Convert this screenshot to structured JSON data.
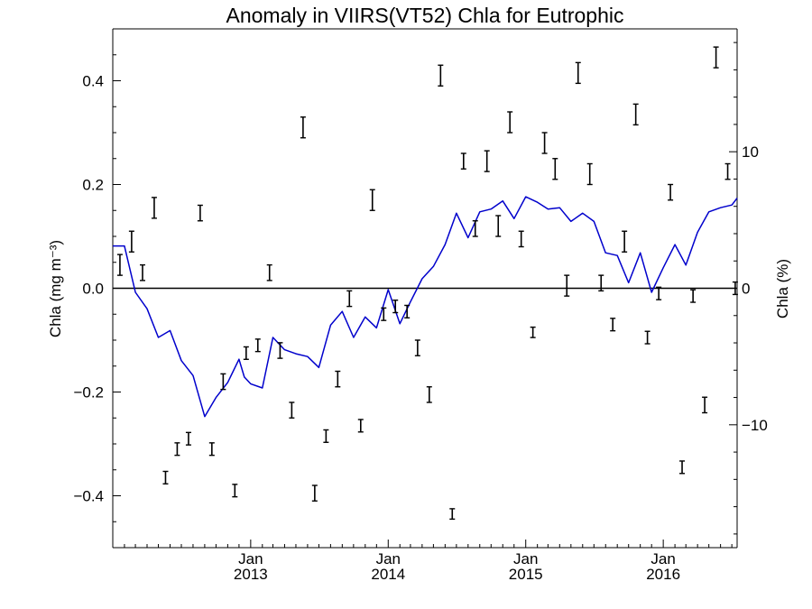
{
  "chart_data": {
    "type": "line",
    "title": "Anomaly in VIIRS(VT52) Chla for Eutrophic",
    "ylabel_left": "Chla (mg m⁻³)",
    "ylabel_right": "Chla (%)",
    "ylim_left": [
      -0.5,
      0.5
    ],
    "ylim_right": [
      -19,
      19
    ],
    "xlim": [
      "2012-01-01",
      "2016-07-15"
    ],
    "y_ticks_left": [
      -0.4,
      -0.2,
      0.0,
      0.2,
      0.4
    ],
    "y_tick_labels_left": [
      "−0.4",
      "−0.2",
      "0.0",
      "0.2",
      "0.4"
    ],
    "y_ticks_right": [
      -10,
      0,
      10
    ],
    "y_tick_labels_right": [
      "−10",
      "0",
      "10"
    ],
    "x_ticks": [
      {
        "date": "2013-01-01",
        "month": "Jan",
        "year": "2013"
      },
      {
        "date": "2014-01-01",
        "month": "Jan",
        "year": "2014"
      },
      {
        "date": "2015-01-01",
        "month": "Jan",
        "year": "2015"
      },
      {
        "date": "2016-01-01",
        "month": "Jan",
        "year": "2016"
      }
    ],
    "colors": {
      "line": "#0000cc",
      "bars": "#000000",
      "axes": "#000000"
    },
    "series": [
      {
        "kind": "line",
        "axis": "right",
        "x": [
          "2012-01-01",
          "2012-02-01",
          "2012-03-01",
          "2012-04-01",
          "2012-05-01",
          "2012-06-01",
          "2012-07-01",
          "2012-08-01",
          "2012-09-01",
          "2012-10-01",
          "2012-11-01",
          "2012-12-01",
          "2012-12-15",
          "2013-01-01",
          "2013-02-01",
          "2013-03-01",
          "2013-04-01",
          "2013-05-01",
          "2013-06-01",
          "2013-07-01",
          "2013-08-01",
          "2013-09-01",
          "2013-10-01",
          "2013-11-01",
          "2013-12-01",
          "2014-01-01",
          "2014-02-01",
          "2014-03-01",
          "2014-04-01",
          "2014-05-01",
          "2014-06-01",
          "2014-07-01",
          "2014-08-01",
          "2014-09-01",
          "2014-10-01",
          "2014-11-01",
          "2014-12-01",
          "2015-01-01",
          "2015-02-01",
          "2015-03-01",
          "2015-04-01",
          "2015-05-01",
          "2015-06-01",
          "2015-07-01",
          "2015-08-01",
          "2015-09-01",
          "2015-10-01",
          "2015-11-01",
          "2015-12-01",
          "2016-01-01",
          "2016-02-01",
          "2016-03-01",
          "2016-04-01",
          "2016-05-01",
          "2016-06-01",
          "2016-07-01",
          "2016-07-15"
        ],
        "y": [
          3.1,
          3.1,
          -0.3,
          -1.5,
          -3.6,
          -3.1,
          -5.3,
          -6.4,
          -9.4,
          -8.0,
          -6.9,
          -5.2,
          -6.5,
          -7.0,
          -7.3,
          -3.6,
          -4.5,
          -4.8,
          -5.0,
          -5.8,
          -2.7,
          -1.7,
          -3.6,
          -2.1,
          -2.9,
          -0.1,
          -2.6,
          -1.0,
          0.7,
          1.6,
          3.2,
          5.5,
          3.7,
          5.6,
          5.8,
          6.4,
          5.1,
          6.7,
          6.3,
          5.8,
          5.9,
          4.9,
          5.5,
          4.9,
          2.6,
          2.4,
          0.4,
          2.6,
          -0.3,
          1.5,
          3.2,
          1.7,
          4.1,
          5.6,
          5.9,
          6.1,
          6.6
        ]
      },
      {
        "kind": "errorbar",
        "axis": "left",
        "x": [
          "2012-01-20",
          "2012-02-20",
          "2012-03-20",
          "2012-04-20",
          "2012-05-20",
          "2012-06-20",
          "2012-07-20",
          "2012-08-20",
          "2012-09-20",
          "2012-10-20",
          "2012-11-20",
          "2012-12-20",
          "2013-01-20",
          "2013-02-20",
          "2013-03-20",
          "2013-04-20",
          "2013-05-20",
          "2013-06-20",
          "2013-07-20",
          "2013-08-20",
          "2013-09-20",
          "2013-10-20",
          "2013-11-20",
          "2013-12-20",
          "2014-01-20",
          "2014-02-20",
          "2014-03-20",
          "2014-04-20",
          "2014-05-20",
          "2014-06-20",
          "2014-07-20",
          "2014-08-20",
          "2014-09-20",
          "2014-10-20",
          "2014-11-20",
          "2014-12-20",
          "2015-01-20",
          "2015-02-20",
          "2015-03-20",
          "2015-04-20",
          "2015-05-20",
          "2015-06-20",
          "2015-07-20",
          "2015-08-20",
          "2015-09-20",
          "2015-10-20",
          "2015-11-20",
          "2015-12-20",
          "2016-01-20",
          "2016-02-20",
          "2016-03-20",
          "2016-04-20",
          "2016-05-20",
          "2016-06-20",
          "2016-07-10"
        ],
        "y": [
          0.045,
          0.09,
          0.03,
          0.155,
          -0.365,
          -0.31,
          -0.29,
          0.145,
          -0.31,
          -0.18,
          -0.39,
          -0.125,
          -0.11,
          0.03,
          -0.12,
          -0.235,
          0.31,
          -0.395,
          -0.285,
          -0.175,
          -0.02,
          -0.265,
          0.17,
          -0.05,
          -0.035,
          -0.045,
          -0.115,
          -0.205,
          0.41,
          -0.435,
          0.245,
          0.115,
          0.245,
          0.12,
          0.32,
          0.095,
          -0.085,
          0.28,
          0.23,
          0.005,
          0.415,
          0.22,
          0.01,
          -0.07,
          0.09,
          0.335,
          -0.095,
          -0.01,
          0.185,
          -0.345,
          -0.015,
          -0.225,
          0.445,
          0.225,
          0.0
        ],
        "err": [
          0.02,
          0.02,
          0.015,
          0.02,
          0.012,
          0.012,
          0.012,
          0.015,
          0.012,
          0.015,
          0.012,
          0.012,
          0.012,
          0.015,
          0.015,
          0.015,
          0.02,
          0.015,
          0.012,
          0.015,
          0.015,
          0.012,
          0.02,
          0.012,
          0.012,
          0.012,
          0.015,
          0.015,
          0.02,
          0.01,
          0.015,
          0.015,
          0.02,
          0.02,
          0.02,
          0.015,
          0.01,
          0.02,
          0.02,
          0.02,
          0.02,
          0.02,
          0.015,
          0.012,
          0.02,
          0.02,
          0.012,
          0.012,
          0.015,
          0.012,
          0.012,
          0.015,
          0.02,
          0.015,
          0.012
        ]
      }
    ],
    "zero_line": true,
    "grid": false
  }
}
